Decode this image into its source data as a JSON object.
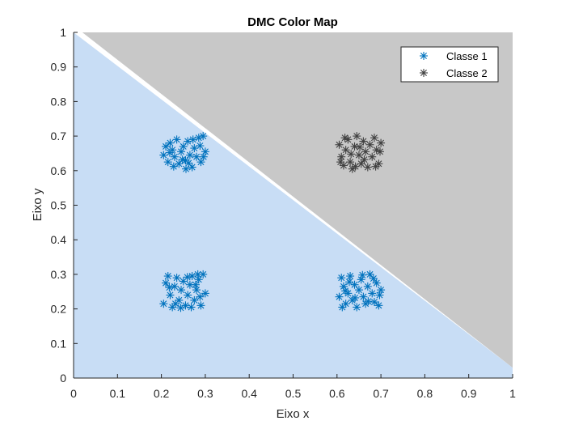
{
  "chart_data": {
    "type": "scatter",
    "title": "DMC Color Map",
    "xlabel": "Eixo x",
    "ylabel": "Eixo y",
    "xlim": [
      0,
      1
    ],
    "ylim": [
      0,
      1
    ],
    "xticks": [
      "0",
      "0.1",
      "0.2",
      "0.3",
      "0.4",
      "0.5",
      "0.6",
      "0.7",
      "0.8",
      "0.9",
      "1"
    ],
    "yticks": [
      "0",
      "0.1",
      "0.2",
      "0.3",
      "0.4",
      "0.5",
      "0.6",
      "0.7",
      "0.8",
      "0.9",
      "1"
    ],
    "grid": false,
    "legend_position": "top-right",
    "decision_regions": [
      {
        "class": "Classe 1",
        "color": "#c8ddf5",
        "polygon": [
          [
            0,
            0
          ],
          [
            1,
            0
          ],
          [
            1,
            0.03
          ],
          [
            0,
            1
          ]
        ]
      },
      {
        "class": "Classe 2",
        "color": "#c8c8c8",
        "polygon": [
          [
            0.02,
            1
          ],
          [
            1,
            1
          ],
          [
            1,
            0.03
          ]
        ]
      }
    ],
    "series": [
      {
        "name": "Classe 1",
        "color": "#0072bd",
        "marker": "asterisk",
        "points": [
          [
            0.205,
            0.645
          ],
          [
            0.21,
            0.67
          ],
          [
            0.215,
            0.625
          ],
          [
            0.22,
            0.68
          ],
          [
            0.225,
            0.66
          ],
          [
            0.23,
            0.64
          ],
          [
            0.235,
            0.69
          ],
          [
            0.24,
            0.62
          ],
          [
            0.245,
            0.655
          ],
          [
            0.25,
            0.67
          ],
          [
            0.255,
            0.63
          ],
          [
            0.26,
            0.685
          ],
          [
            0.265,
            0.645
          ],
          [
            0.27,
            0.61
          ],
          [
            0.275,
            0.665
          ],
          [
            0.28,
            0.64
          ],
          [
            0.285,
            0.695
          ],
          [
            0.29,
            0.625
          ],
          [
            0.295,
            0.7
          ],
          [
            0.3,
            0.655
          ],
          [
            0.228,
            0.612
          ],
          [
            0.262,
            0.622
          ],
          [
            0.288,
            0.672
          ],
          [
            0.248,
            0.632
          ],
          [
            0.272,
            0.69
          ],
          [
            0.219,
            0.652
          ],
          [
            0.256,
            0.605
          ],
          [
            0.296,
            0.64
          ],
          [
            0.205,
            0.215
          ],
          [
            0.21,
            0.275
          ],
          [
            0.215,
            0.295
          ],
          [
            0.22,
            0.24
          ],
          [
            0.225,
            0.205
          ],
          [
            0.23,
            0.265
          ],
          [
            0.235,
            0.29
          ],
          [
            0.24,
            0.225
          ],
          [
            0.245,
            0.255
          ],
          [
            0.25,
            0.28
          ],
          [
            0.255,
            0.21
          ],
          [
            0.26,
            0.24
          ],
          [
            0.265,
            0.27
          ],
          [
            0.27,
            0.295
          ],
          [
            0.275,
            0.225
          ],
          [
            0.28,
            0.255
          ],
          [
            0.285,
            0.285
          ],
          [
            0.29,
            0.21
          ],
          [
            0.295,
            0.3
          ],
          [
            0.3,
            0.245
          ],
          [
            0.232,
            0.215
          ],
          [
            0.268,
            0.205
          ],
          [
            0.278,
            0.27
          ],
          [
            0.288,
            0.235
          ],
          [
            0.218,
            0.262
          ],
          [
            0.259,
            0.292
          ],
          [
            0.244,
            0.203
          ],
          [
            0.283,
            0.3
          ],
          [
            0.605,
            0.235
          ],
          [
            0.61,
            0.29
          ],
          [
            0.615,
            0.265
          ],
          [
            0.62,
            0.215
          ],
          [
            0.625,
            0.245
          ],
          [
            0.63,
            0.295
          ],
          [
            0.635,
            0.225
          ],
          [
            0.64,
            0.27
          ],
          [
            0.645,
            0.205
          ],
          [
            0.65,
            0.255
          ],
          [
            0.655,
            0.285
          ],
          [
            0.66,
            0.235
          ],
          [
            0.665,
            0.215
          ],
          [
            0.67,
            0.265
          ],
          [
            0.675,
            0.3
          ],
          [
            0.68,
            0.245
          ],
          [
            0.685,
            0.22
          ],
          [
            0.69,
            0.275
          ],
          [
            0.695,
            0.21
          ],
          [
            0.7,
            0.255
          ],
          [
            0.612,
            0.205
          ],
          [
            0.628,
            0.278
          ],
          [
            0.658,
            0.298
          ],
          [
            0.671,
            0.222
          ],
          [
            0.697,
            0.24
          ],
          [
            0.641,
            0.232
          ],
          [
            0.683,
            0.288
          ],
          [
            0.619,
            0.252
          ]
        ]
      },
      {
        "name": "Classe 2",
        "color": "#404040",
        "marker": "asterisk",
        "points": [
          [
            0.605,
            0.675
          ],
          [
            0.61,
            0.64
          ],
          [
            0.615,
            0.615
          ],
          [
            0.62,
            0.66
          ],
          [
            0.625,
            0.69
          ],
          [
            0.63,
            0.625
          ],
          [
            0.635,
            0.605
          ],
          [
            0.64,
            0.67
          ],
          [
            0.645,
            0.7
          ],
          [
            0.65,
            0.645
          ],
          [
            0.655,
            0.62
          ],
          [
            0.66,
            0.685
          ],
          [
            0.665,
            0.655
          ],
          [
            0.67,
            0.61
          ],
          [
            0.675,
            0.675
          ],
          [
            0.68,
            0.64
          ],
          [
            0.685,
            0.695
          ],
          [
            0.69,
            0.66
          ],
          [
            0.695,
            0.62
          ],
          [
            0.7,
            0.68
          ],
          [
            0.618,
            0.695
          ],
          [
            0.642,
            0.612
          ],
          [
            0.662,
            0.632
          ],
          [
            0.688,
            0.612
          ],
          [
            0.698,
            0.655
          ],
          [
            0.632,
            0.648
          ],
          [
            0.652,
            0.668
          ],
          [
            0.608,
            0.625
          ]
        ]
      }
    ]
  }
}
